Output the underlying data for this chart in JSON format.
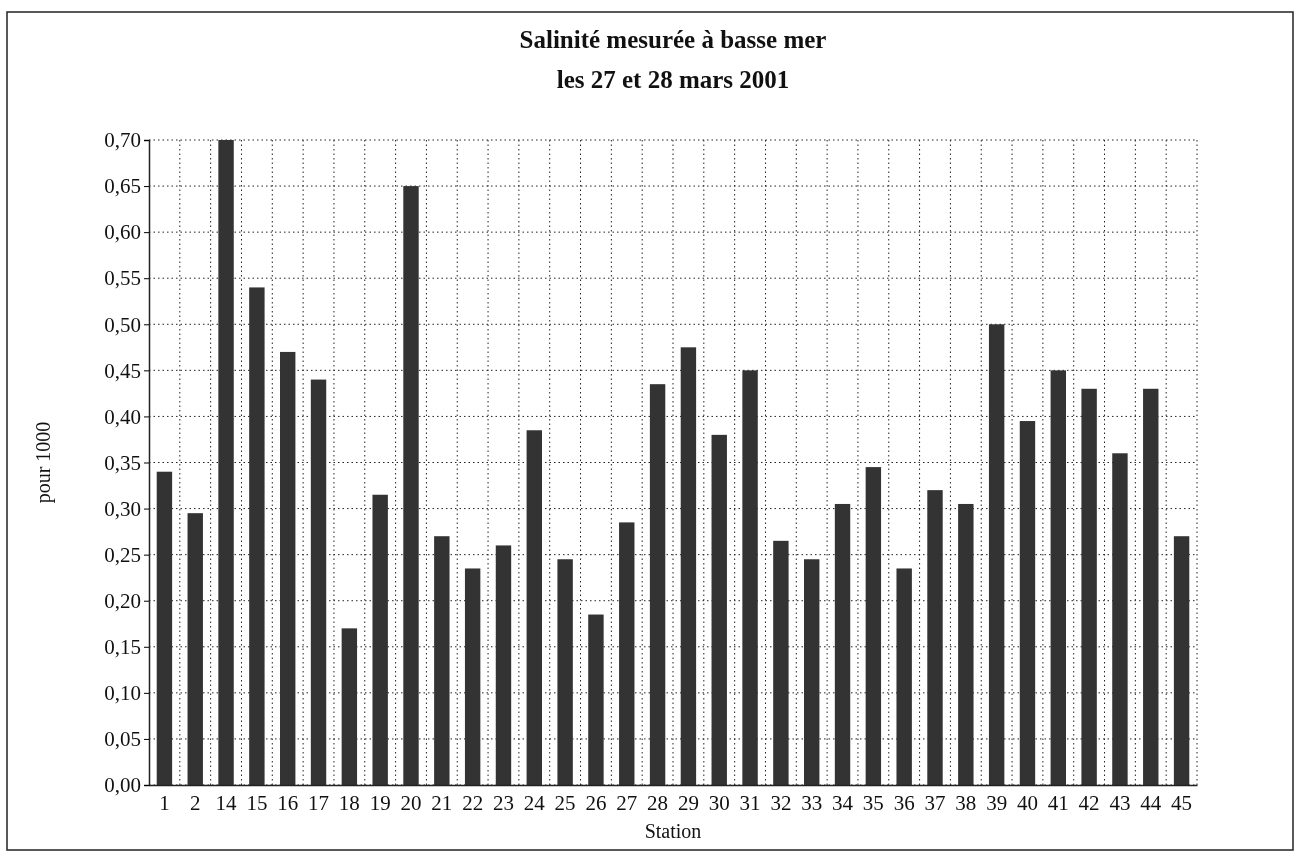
{
  "chart_data": {
    "type": "bar",
    "title": "Salinité mesurée à basse mer",
    "subtitle": "les 27 et 28 mars 2001",
    "xlabel": "Station",
    "ylabel": "pour 1000",
    "categories": [
      "1",
      "2",
      "14",
      "15",
      "16",
      "17",
      "18",
      "19",
      "20",
      "21",
      "22",
      "23",
      "24",
      "25",
      "26",
      "27",
      "28",
      "29",
      "30",
      "31",
      "32",
      "33",
      "34",
      "35",
      "36",
      "37",
      "38",
      "39",
      "40",
      "41",
      "42",
      "43",
      "44",
      "45"
    ],
    "values": [
      0.34,
      0.295,
      0.7,
      0.54,
      0.47,
      0.44,
      0.17,
      0.315,
      0.65,
      0.27,
      0.235,
      0.26,
      0.385,
      0.245,
      0.185,
      0.285,
      0.435,
      0.475,
      0.38,
      0.45,
      0.265,
      0.245,
      0.305,
      0.345,
      0.235,
      0.32,
      0.305,
      0.5,
      0.395,
      0.45,
      0.43,
      0.36,
      0.43,
      0.27
    ],
    "color": "#333333",
    "ylim": [
      0,
      0.7
    ],
    "yticks": [
      {
        "value": 0,
        "label": "0,00"
      },
      {
        "value": 0.05,
        "label": "0,05"
      },
      {
        "value": 0.1,
        "label": "0,10"
      },
      {
        "value": 0.15,
        "label": "0,15"
      },
      {
        "value": 0.2,
        "label": "0,20"
      },
      {
        "value": 0.25,
        "label": "0,25"
      },
      {
        "value": 0.3,
        "label": "0,30"
      },
      {
        "value": 0.35,
        "label": "0,35"
      },
      {
        "value": 0.4,
        "label": "0,40"
      },
      {
        "value": 0.45,
        "label": "0,45"
      },
      {
        "value": 0.5,
        "label": "0,50"
      },
      {
        "value": 0.55,
        "label": "0,55"
      },
      {
        "value": 0.6,
        "label": "0,60"
      },
      {
        "value": 0.65,
        "label": "0,65"
      },
      {
        "value": 0.7,
        "label": "0,70"
      }
    ],
    "grid": true
  }
}
